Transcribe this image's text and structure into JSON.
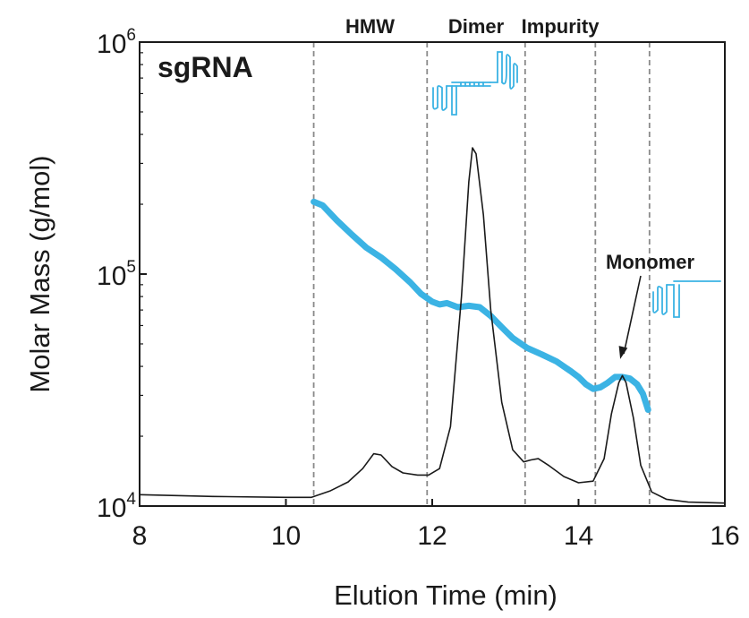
{
  "chart_data": {
    "type": "line",
    "title": "",
    "panel_label": "sgRNA",
    "xlabel": "Elution Time (min)",
    "ylabel": "Molar Mass (g/mol)",
    "xlim": [
      8,
      16
    ],
    "ylim": [
      10000,
      1000000
    ],
    "yscale": "log",
    "grid": false,
    "x_ticks": [
      {
        "value": 8,
        "label": "8"
      },
      {
        "value": 10,
        "label": "10"
      },
      {
        "value": 12,
        "label": "12"
      },
      {
        "value": 14,
        "label": "14"
      },
      {
        "value": 16,
        "label": "16"
      }
    ],
    "y_ticks": [
      {
        "value": 10000,
        "base": "10",
        "exp": "4"
      },
      {
        "value": 100000,
        "base": "10",
        "exp": "5"
      },
      {
        "value": 1000000,
        "base": "10",
        "exp": "6"
      }
    ],
    "region_boundaries": [
      10.38,
      11.93,
      13.27,
      14.23,
      14.97
    ],
    "region_labels": [
      {
        "text": "HMW",
        "x": 11.15
      },
      {
        "text": "Dimer",
        "x": 12.6
      },
      {
        "text": "Impurity",
        "x": 13.75
      }
    ],
    "annotation": {
      "text": "Monomer",
      "target": {
        "x": 14.57,
        "y": 43000
      }
    },
    "colors": {
      "molar_mass": "#3bb3e4",
      "trace": "#1a1a1a",
      "boundary": "#8a8a8a",
      "icon": "#3bb3e4"
    },
    "series": [
      {
        "role": "molar_mass",
        "x": [
          10.38,
          10.5,
          10.7,
          10.9,
          11.1,
          11.3,
          11.5,
          11.7,
          11.85,
          12.0,
          12.1,
          12.2,
          12.35,
          12.5,
          12.65,
          12.8,
          12.95,
          13.1,
          13.3,
          13.5,
          13.7,
          13.9,
          14.0,
          14.1,
          14.2,
          14.3,
          14.4,
          14.5,
          14.6,
          14.7,
          14.8,
          14.88,
          14.95
        ],
        "y": [
          205000,
          198000,
          170000,
          148000,
          130000,
          118000,
          105000,
          92000,
          82000,
          76000,
          74000,
          75000,
          72000,
          73000,
          72000,
          66000,
          59000,
          53000,
          48000,
          45000,
          42000,
          38000,
          36000,
          33500,
          32000,
          32500,
          34000,
          36000,
          36000,
          35500,
          33500,
          30500,
          26000
        ]
      },
      {
        "role": "trace",
        "x": [
          8.0,
          9.0,
          10.0,
          10.35,
          10.6,
          10.85,
          11.05,
          11.2,
          11.3,
          11.45,
          11.6,
          11.8,
          11.95,
          12.1,
          12.25,
          12.4,
          12.5,
          12.55,
          12.6,
          12.7,
          12.8,
          12.95,
          13.1,
          13.25,
          13.35,
          13.45,
          13.6,
          13.8,
          14.0,
          14.2,
          14.35,
          14.45,
          14.55,
          14.6,
          14.65,
          14.75,
          14.85,
          15.0,
          15.2,
          15.5,
          16.0
        ],
        "y": [
          11200,
          11000,
          10900,
          10900,
          11600,
          12700,
          14500,
          16800,
          16600,
          14800,
          13900,
          13600,
          13600,
          14500,
          22000,
          80000,
          250000,
          350000,
          330000,
          180000,
          70000,
          28000,
          17500,
          15500,
          15800,
          16000,
          14900,
          13400,
          12600,
          12800,
          16000,
          25000,
          34000,
          36500,
          34000,
          24000,
          15000,
          11500,
          10700,
          10400,
          10300
        ]
      }
    ]
  }
}
